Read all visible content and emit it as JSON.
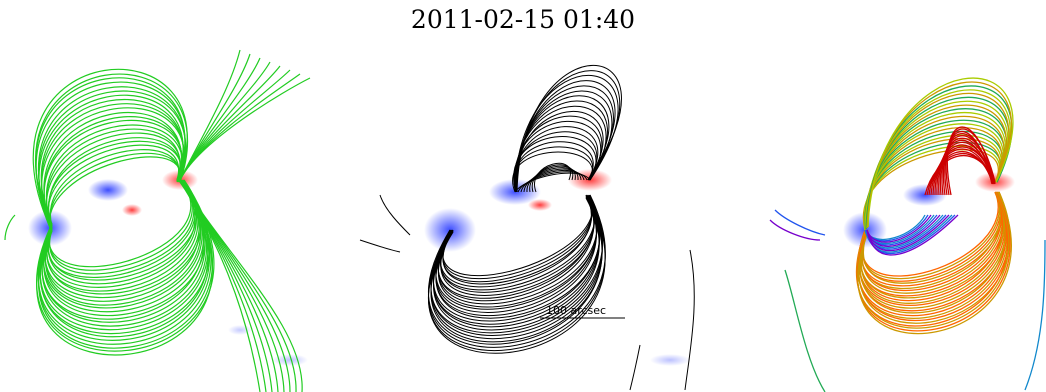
{
  "title": "2011-02-15 01:40",
  "panels": [
    {
      "name": "left",
      "line_color": "#22cc22"
    },
    {
      "name": "center",
      "line_color": "#000000",
      "scale_bar_label": "100 arcsec"
    },
    {
      "name": "right",
      "line_colors": [
        "#cc0000",
        "#ff6600",
        "#cc9900",
        "#aacc00",
        "#22aa55",
        "#1188cc",
        "#2255ee",
        "#7700cc"
      ]
    }
  ],
  "magnetogram": {
    "positive_color": "#ff4444",
    "negative_color": "#4455ff"
  }
}
